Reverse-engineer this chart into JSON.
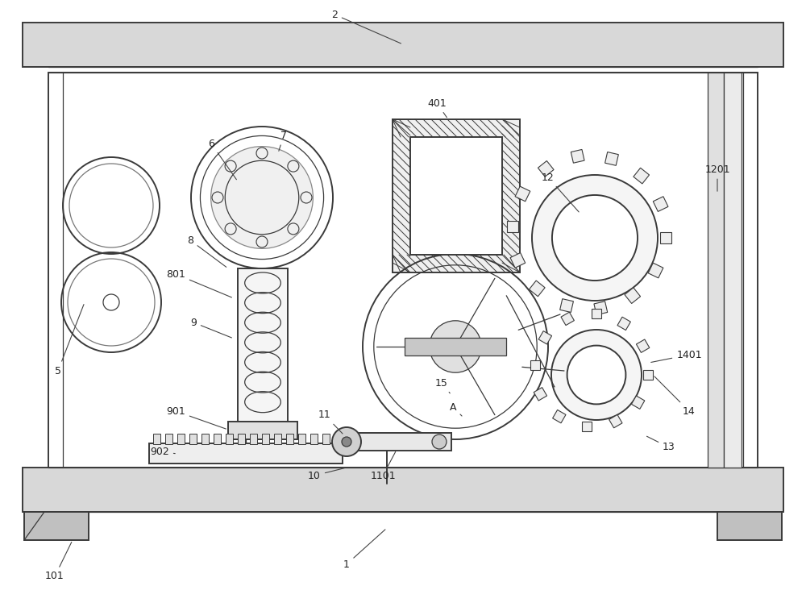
{
  "bg_color": "#ffffff",
  "line_color": "#3a3a3a",
  "figsize": [
    10.0,
    7.53
  ],
  "dpi": 100
}
